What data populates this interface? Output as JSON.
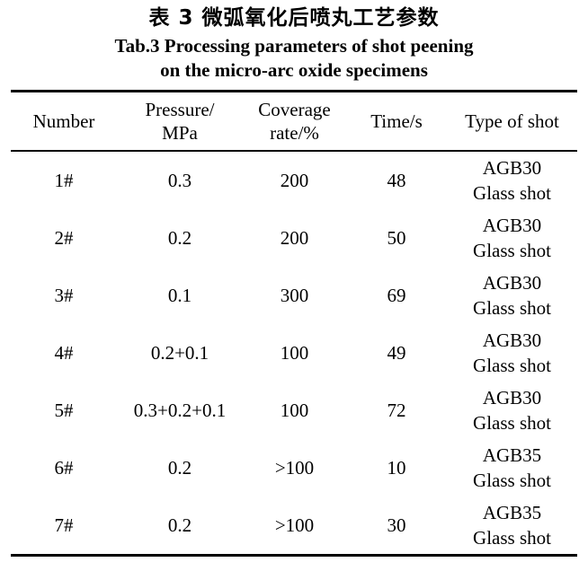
{
  "page": {
    "title_cn": "表 3 微弧氧化后喷丸工艺参数",
    "title_en_line1": "Tab.3 Processing parameters of shot peening",
    "title_en_line2": "on the micro-arc oxide specimens"
  },
  "table": {
    "column_keys": [
      "number",
      "pressure",
      "coverage",
      "time",
      "type"
    ],
    "headers": [
      "Number",
      "Pressure/\nMPa",
      "Coverage\nrate/%",
      "Time/s",
      "Type of shot"
    ],
    "rows": [
      {
        "number": "1#",
        "pressure": "0.3",
        "coverage": "200",
        "time": "48",
        "type": "AGB30\nGlass shot"
      },
      {
        "number": "2#",
        "pressure": "0.2",
        "coverage": "200",
        "time": "50",
        "type": "AGB30\nGlass shot"
      },
      {
        "number": "3#",
        "pressure": "0.1",
        "coverage": "300",
        "time": "69",
        "type": "AGB30\nGlass shot"
      },
      {
        "number": "4#",
        "pressure": "0.2+0.1",
        "coverage": "100",
        "time": "49",
        "type": "AGB30\nGlass shot"
      },
      {
        "number": "5#",
        "pressure": "0.3+0.2+0.1",
        "coverage": "100",
        "time": "72",
        "type": "AGB30\nGlass shot"
      },
      {
        "number": "6#",
        "pressure": "0.2",
        "coverage": ">100",
        "time": "10",
        "type": "AGB35\nGlass shot"
      },
      {
        "number": "7#",
        "pressure": "0.2",
        "coverage": ">100",
        "time": "30",
        "type": "AGB35\nGlass shot"
      }
    ]
  },
  "colors": {
    "text": "#000000",
    "background": "#ffffff",
    "rule": "#000000"
  }
}
